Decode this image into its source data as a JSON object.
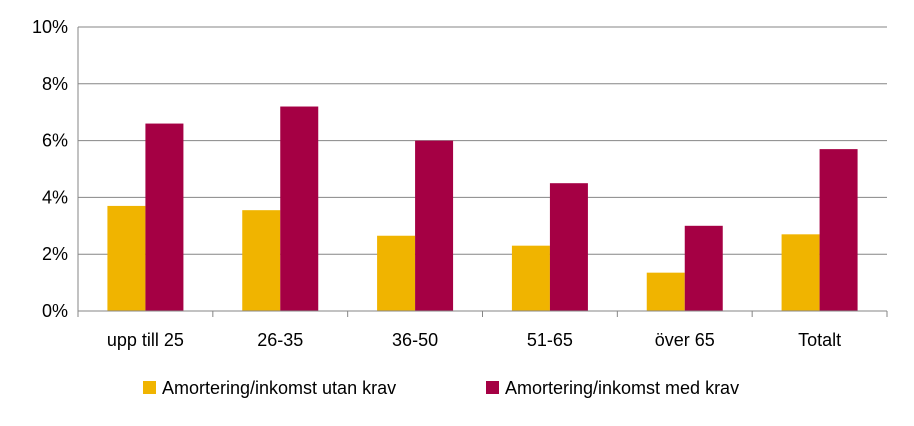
{
  "chart_data": {
    "type": "bar",
    "categories": [
      "upp till 25",
      "26-35",
      "36-50",
      "51-65",
      "över 65",
      "Totalt"
    ],
    "series": [
      {
        "name": "Amortering/inkomst utan krav",
        "values": [
          3.7,
          3.55,
          2.65,
          2.3,
          1.35,
          2.7
        ],
        "color": "#F0B400"
      },
      {
        "name": "Amortering/inkomst med krav",
        "values": [
          6.6,
          7.2,
          6.0,
          4.5,
          3.0,
          5.7
        ],
        "color": "#A50044"
      }
    ],
    "y_ticks": [
      "0%",
      "2%",
      "4%",
      "6%",
      "8%",
      "10%"
    ],
    "ylim": [
      0,
      10
    ],
    "grid": true,
    "legend_position": "bottom"
  }
}
